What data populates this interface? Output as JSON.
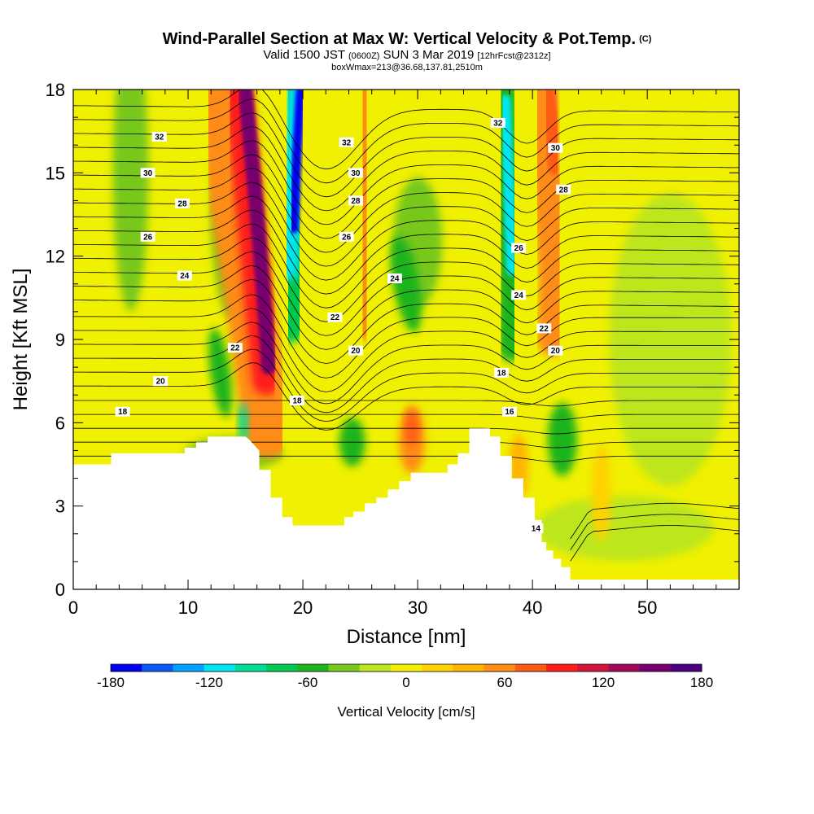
{
  "title": {
    "main": "Wind-Parallel Section at Max W: Vertical Velocity & Pot.Temp.",
    "main_tag": "(C)",
    "valid_prefix": "Valid 1500 JST",
    "valid_utc": "(0600Z)",
    "valid_date": "SUN 3 Mar 2019",
    "forecast_tag": "[12hrFcst@2312z]",
    "boxline": "boxWmax=213@36.68,137.81,2510m"
  },
  "chart_data": {
    "type": "heatmap",
    "title": "Wind-Parallel Section at Max W: Vertical Velocity & Pot.Temp.",
    "xlabel": "Distance [nm]",
    "ylabel": "Height [Kft MSL]",
    "xlim": [
      0,
      58
    ],
    "ylim": [
      0,
      18
    ],
    "x_ticks": [
      0,
      10,
      20,
      30,
      40,
      50
    ],
    "y_ticks": [
      0,
      3,
      6,
      9,
      12,
      15,
      18
    ],
    "field": "Vertical Velocity",
    "colorbar": {
      "label": "Vertical Velocity [cm/s]",
      "min": -180,
      "max": 180,
      "ticks": [
        -180,
        -120,
        -60,
        0,
        60,
        120,
        180
      ],
      "colors": [
        "#0000f0",
        "#0a5af5",
        "#00a0ff",
        "#00e6f0",
        "#00dc96",
        "#00c850",
        "#1eb41e",
        "#78c81e",
        "#bee61e",
        "#f0f000",
        "#ffd200",
        "#ffb400",
        "#ff8c14",
        "#ff5a14",
        "#ff1e1e",
        "#d2143c",
        "#a00a5a",
        "#78006e",
        "#4b0082"
      ]
    },
    "contours": {
      "field": "Potential Temperature",
      "labels": [
        {
          "value": "32",
          "x": 7.5,
          "y": 16.3
        },
        {
          "value": "30",
          "x": 6.5,
          "y": 15.0
        },
        {
          "value": "28",
          "x": 9.5,
          "y": 13.9
        },
        {
          "value": "26",
          "x": 6.5,
          "y": 12.7
        },
        {
          "value": "24",
          "x": 9.7,
          "y": 11.3
        },
        {
          "value": "22",
          "x": 14.1,
          "y": 8.7
        },
        {
          "value": "20",
          "x": 7.6,
          "y": 7.5
        },
        {
          "value": "18",
          "x": 4.3,
          "y": 6.4
        },
        {
          "value": "32",
          "x": 23.8,
          "y": 16.1
        },
        {
          "value": "30",
          "x": 24.6,
          "y": 15.0
        },
        {
          "value": "28",
          "x": 24.6,
          "y": 14.0
        },
        {
          "value": "26",
          "x": 23.8,
          "y": 12.7
        },
        {
          "value": "24",
          "x": 28.0,
          "y": 11.2
        },
        {
          "value": "22",
          "x": 22.8,
          "y": 9.8
        },
        {
          "value": "20",
          "x": 24.6,
          "y": 8.6
        },
        {
          "value": "18",
          "x": 19.5,
          "y": 6.8
        },
        {
          "value": "32",
          "x": 37.0,
          "y": 16.8
        },
        {
          "value": "30",
          "x": 42.0,
          "y": 15.9
        },
        {
          "value": "28",
          "x": 42.7,
          "y": 14.4
        },
        {
          "value": "26",
          "x": 38.8,
          "y": 12.3
        },
        {
          "value": "24",
          "x": 38.8,
          "y": 10.6
        },
        {
          "value": "22",
          "x": 41.0,
          "y": 9.4
        },
        {
          "value": "20",
          "x": 42.0,
          "y": 8.6
        },
        {
          "value": "18",
          "x": 37.3,
          "y": 7.8
        },
        {
          "value": "16",
          "x": 38.0,
          "y": 6.4
        },
        {
          "value": "14",
          "x": 40.3,
          "y": 2.2
        }
      ]
    },
    "terrain_profile": [
      [
        0,
        4.5
      ],
      [
        3.3,
        4.5
      ],
      [
        3.3,
        4.9
      ],
      [
        9.7,
        4.9
      ],
      [
        9.7,
        5.1
      ],
      [
        10.7,
        5.1
      ],
      [
        10.7,
        5.3
      ],
      [
        11.7,
        5.3
      ],
      [
        11.7,
        5.5
      ],
      [
        15.0,
        5.5
      ],
      [
        15.3,
        5.4
      ],
      [
        16.2,
        5.0
      ],
      [
        16.2,
        4.3
      ],
      [
        17.2,
        4.3
      ],
      [
        17.2,
        3.3
      ],
      [
        18.2,
        3.3
      ],
      [
        18.2,
        2.6
      ],
      [
        19.1,
        2.6
      ],
      [
        19.1,
        2.3
      ],
      [
        23.6,
        2.3
      ],
      [
        23.6,
        2.6
      ],
      [
        24.4,
        2.6
      ],
      [
        24.4,
        2.8
      ],
      [
        25.4,
        2.8
      ],
      [
        25.4,
        3.1
      ],
      [
        26.4,
        3.1
      ],
      [
        26.4,
        3.3
      ],
      [
        27.4,
        3.3
      ],
      [
        27.4,
        3.6
      ],
      [
        28.4,
        3.6
      ],
      [
        28.4,
        3.9
      ],
      [
        29.4,
        3.9
      ],
      [
        29.4,
        4.2
      ],
      [
        32.6,
        4.2
      ],
      [
        32.6,
        4.5
      ],
      [
        33.5,
        4.5
      ],
      [
        33.5,
        4.9
      ],
      [
        34.5,
        4.9
      ],
      [
        34.5,
        5.8
      ],
      [
        36.3,
        5.8
      ],
      [
        36.3,
        5.5
      ],
      [
        37.2,
        5.5
      ],
      [
        37.2,
        4.8
      ],
      [
        38.2,
        4.8
      ],
      [
        38.2,
        4.0
      ],
      [
        39.2,
        4.0
      ],
      [
        39.2,
        3.3
      ],
      [
        40.2,
        3.3
      ],
      [
        40.2,
        2.5
      ],
      [
        40.8,
        2.5
      ],
      [
        40.8,
        1.7
      ],
      [
        41.2,
        1.7
      ],
      [
        41.2,
        1.4
      ],
      [
        41.8,
        1.4
      ],
      [
        41.8,
        1.1
      ],
      [
        42.5,
        1.1
      ],
      [
        42.5,
        0.8
      ],
      [
        43.3,
        0.8
      ],
      [
        43.3,
        0.35
      ],
      [
        58,
        0.35
      ]
    ]
  }
}
